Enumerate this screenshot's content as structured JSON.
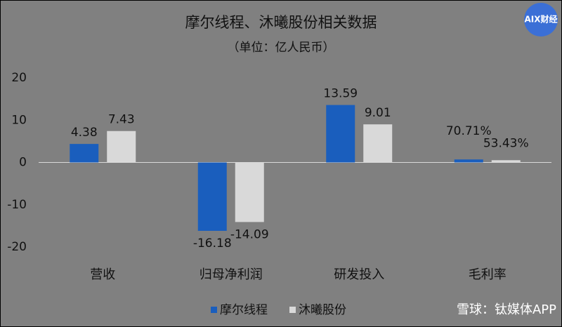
{
  "chart_data": {
    "type": "bar",
    "title": "摩尔线程、沐曦股份相关数据",
    "subtitle": "（单位：亿人民币）",
    "categories": [
      "营收",
      "归母净利润",
      "研发投入",
      "毛利率"
    ],
    "series": [
      {
        "name": "摩尔线程",
        "color": "#1a5ebd",
        "values": [
          4.38,
          -16.18,
          13.59,
          0.7071
        ],
        "value_labels": [
          "4.38",
          "-16.18",
          "13.59",
          "70.71%"
        ]
      },
      {
        "name": "沐曦股份",
        "color": "#d9d9d9",
        "values": [
          7.43,
          -14.09,
          9.01,
          0.5343
        ],
        "value_labels": [
          "7.43",
          "-14.09",
          "9.01",
          "53.43%"
        ]
      }
    ],
    "ylim": [
      -20,
      20
    ],
    "yticks": [
      -20,
      -10,
      0,
      10,
      20
    ],
    "legend": "bottom"
  },
  "watermarks": [
    "AIX财经",
    "雪球：钛媒体APP"
  ]
}
